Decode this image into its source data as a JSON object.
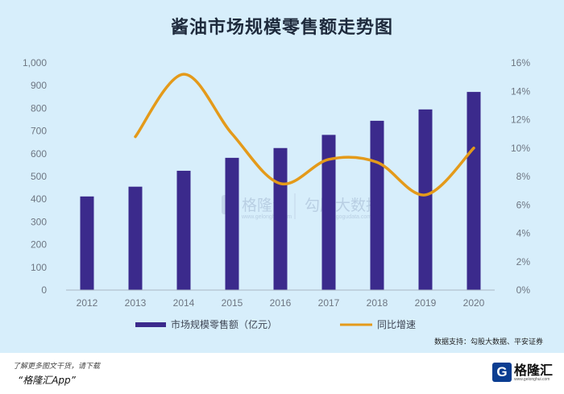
{
  "chart_data": {
    "type": "bar+line",
    "title": "酱油市场规模零售额走势图",
    "categories": [
      "2012",
      "2013",
      "2014",
      "2015",
      "2016",
      "2017",
      "2018",
      "2019",
      "2020"
    ],
    "series": [
      {
        "name": "市场规模零售额（亿元）",
        "type": "bar",
        "axis": "left",
        "color": "#3b2a8c",
        "values": [
          412,
          455,
          525,
          582,
          625,
          683,
          745,
          795,
          872
        ]
      },
      {
        "name": "同比增速",
        "type": "line",
        "axis": "right",
        "color": "#e49a1a",
        "x": [
          2013,
          2014,
          2015,
          2016,
          2017,
          2018,
          2019,
          2020
        ],
        "values": [
          10.8,
          15.2,
          11.0,
          7.5,
          9.2,
          9.0,
          6.7,
          10.0
        ]
      }
    ],
    "left_axis": {
      "min": 0,
      "max": 1000,
      "step": 100,
      "tick_labels": [
        "0",
        "100",
        "200",
        "300",
        "400",
        "500",
        "600",
        "700",
        "800",
        "900",
        "1,000"
      ]
    },
    "right_axis": {
      "min": 0,
      "max": 16,
      "step": 2,
      "tick_labels": [
        "0%",
        "2%",
        "4%",
        "6%",
        "8%",
        "10%",
        "12%",
        "14%",
        "16%"
      ]
    },
    "legend_position": "bottom",
    "grid": false
  },
  "watermark": {
    "left_text": "格隆汇",
    "left_url": "www.gelonghui.com",
    "right_text": "勾股大数据",
    "right_url": "www.gogudata.com"
  },
  "source_note": "数据支持：勾股大数据、平安证券",
  "footer": {
    "line1": "了解更多图文干货，请下载",
    "line2": "“格隆汇App”"
  },
  "brand": {
    "mark": "G",
    "name": "格隆汇",
    "url": "www.gelonghui.com"
  }
}
